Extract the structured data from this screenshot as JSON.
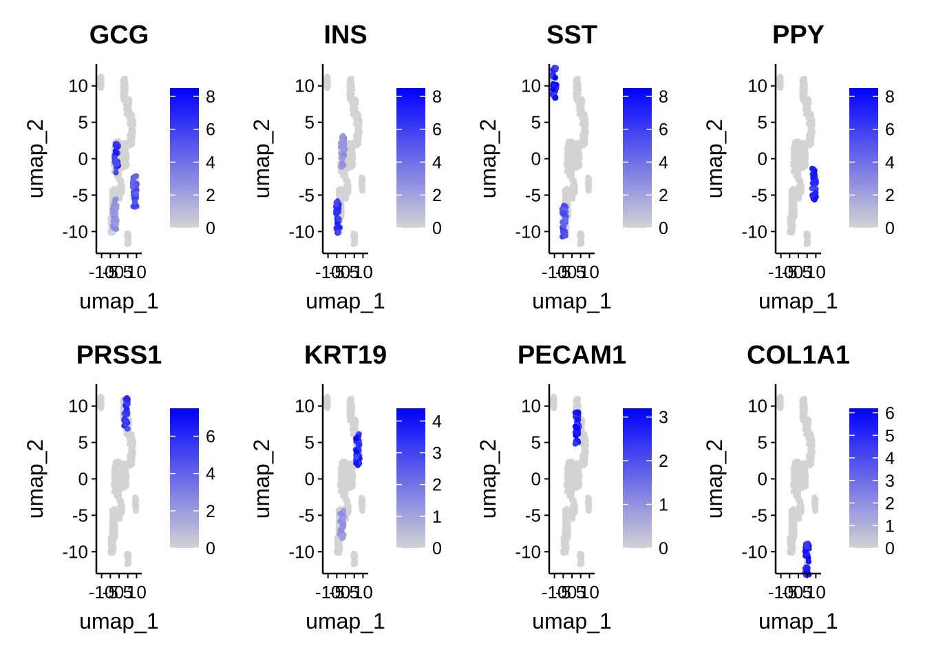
{
  "colors": {
    "low": "#d3d3d3",
    "high": "#0000ff",
    "axis": "#000000"
  },
  "chart_data": [
    {
      "type": "scatter",
      "title": "GCG",
      "xlabel": "umap_1",
      "ylabel": "umap_2",
      "xlim": [
        -13,
        13
      ],
      "ylim": [
        -13,
        13
      ],
      "x_ticks": [
        "-10",
        "-5",
        "0",
        "5",
        "10"
      ],
      "y_ticks": [
        "10",
        "5",
        "0",
        "-5",
        "-10"
      ],
      "legend": {
        "position": "right",
        "max": 8.5,
        "ticks": [
          "8",
          "6",
          "4",
          "2",
          "0"
        ]
      },
      "highlights": [
        {
          "x": -1.5,
          "y": 0,
          "value": 7.5
        },
        {
          "x": -2.5,
          "y": -7.5,
          "value": 3
        },
        {
          "x": 9,
          "y": -4.5,
          "value": 6
        }
      ]
    },
    {
      "type": "scatter",
      "title": "INS",
      "xlabel": "umap_1",
      "ylabel": "umap_2",
      "xlim": [
        -13,
        13
      ],
      "ylim": [
        -13,
        13
      ],
      "x_ticks": [
        "-10",
        "-5",
        "0",
        "5",
        "10"
      ],
      "y_ticks": [
        "10",
        "5",
        "0",
        "-5",
        "-10"
      ],
      "legend": {
        "position": "right",
        "max": 8.5,
        "ticks": [
          "8",
          "6",
          "4",
          "2",
          "0"
        ]
      },
      "highlights": [
        {
          "x": -4.5,
          "y": -8,
          "value": 7.5
        },
        {
          "x": -1.5,
          "y": 1,
          "value": 3
        }
      ]
    },
    {
      "type": "scatter",
      "title": "SST",
      "xlabel": "umap_1",
      "ylabel": "umap_2",
      "xlim": [
        -13,
        13
      ],
      "ylim": [
        -13,
        13
      ],
      "x_ticks": [
        "-10",
        "-5",
        "0",
        "5",
        "10"
      ],
      "y_ticks": [
        "10",
        "5",
        "0",
        "-5",
        "-10"
      ],
      "legend": {
        "position": "right",
        "max": 8.5,
        "ticks": [
          "8",
          "6",
          "4",
          "2",
          "0"
        ]
      },
      "highlights": [
        {
          "x": -10,
          "y": 10.5,
          "value": 8.3
        },
        {
          "x": -4.5,
          "y": -8.5,
          "value": 6
        }
      ]
    },
    {
      "type": "scatter",
      "title": "PPY",
      "xlabel": "umap_1",
      "ylabel": "umap_2",
      "xlim": [
        -13,
        13
      ],
      "ylim": [
        -13,
        13
      ],
      "x_ticks": [
        "-10",
        "-5",
        "0",
        "5",
        "10"
      ],
      "y_ticks": [
        "10",
        "5",
        "0",
        "-5",
        "-10"
      ],
      "legend": {
        "position": "right",
        "max": 8.5,
        "ticks": [
          "8",
          "6",
          "4",
          "2",
          "0"
        ]
      },
      "highlights": [
        {
          "x": 9,
          "y": -3.5,
          "value": 8
        }
      ]
    },
    {
      "type": "scatter",
      "title": "PRSS1",
      "xlabel": "umap_1",
      "ylabel": "umap_2",
      "xlim": [
        -13,
        13
      ],
      "ylim": [
        -13,
        13
      ],
      "x_ticks": [
        "-10",
        "-5",
        "0",
        "5",
        "10"
      ],
      "y_ticks": [
        "10",
        "5",
        "0",
        "-5",
        "-10"
      ],
      "legend": {
        "position": "right",
        "max": 7.5,
        "ticks": [
          "6",
          "4",
          "2",
          "0"
        ]
      },
      "highlights": [
        {
          "x": 4,
          "y": 9,
          "value": 6.5
        }
      ]
    },
    {
      "type": "scatter",
      "title": "KRT19",
      "xlabel": "umap_1",
      "ylabel": "umap_2",
      "xlim": [
        -13,
        13
      ],
      "ylim": [
        -13,
        13
      ],
      "x_ticks": [
        "-10",
        "-5",
        "0",
        "5",
        "10"
      ],
      "y_ticks": [
        "10",
        "5",
        "0",
        "-5",
        "-10"
      ],
      "legend": {
        "position": "right",
        "max": 4.4,
        "ticks": [
          "4",
          "3",
          "2",
          "1",
          "0"
        ]
      },
      "highlights": [
        {
          "x": 7,
          "y": 4,
          "value": 4.2
        },
        {
          "x": -2,
          "y": -6,
          "value": 1.5
        }
      ]
    },
    {
      "type": "scatter",
      "title": "PECAM1",
      "xlabel": "umap_1",
      "ylabel": "umap_2",
      "xlim": [
        -13,
        13
      ],
      "ylim": [
        -13,
        13
      ],
      "x_ticks": [
        "-10",
        "-5",
        "0",
        "5",
        "10"
      ],
      "y_ticks": [
        "10",
        "5",
        "0",
        "-5",
        "-10"
      ],
      "legend": {
        "position": "right",
        "max": 3.2,
        "ticks": [
          "3",
          "2",
          "1",
          "0"
        ]
      },
      "highlights": [
        {
          "x": 3,
          "y": 7,
          "value": 3.1
        }
      ]
    },
    {
      "type": "scatter",
      "title": "COL1A1",
      "xlabel": "umap_1",
      "ylabel": "umap_2",
      "xlim": [
        -13,
        13
      ],
      "ylim": [
        -13,
        13
      ],
      "x_ticks": [
        "-10",
        "-5",
        "0",
        "5",
        "10"
      ],
      "y_ticks": [
        "10",
        "5",
        "0",
        "-5",
        "-10"
      ],
      "legend": {
        "position": "right",
        "max": 6.2,
        "ticks": [
          "6",
          "5",
          "4",
          "3",
          "2",
          "1",
          "0"
        ]
      },
      "highlights": [
        {
          "x": 5,
          "y": -11,
          "value": 6
        }
      ]
    }
  ]
}
